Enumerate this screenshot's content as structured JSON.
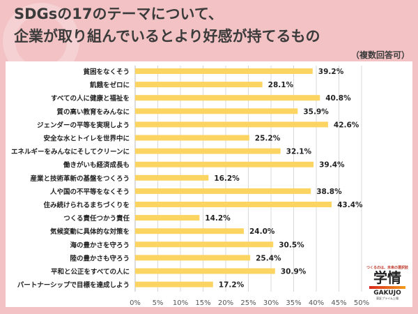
{
  "title_line1": "SDGsの17のテーマについて、",
  "title_line2": "企業が取り組んでいるとより好感が持てるもの",
  "subtitle": "（複数回答可）",
  "logo": {
    "tagline": "つくるのは、未来の選択肢",
    "name": "学情",
    "name_en": "GAKUJO",
    "listing": "東証プライム上場"
  },
  "colors": {
    "bar": "#fcd462",
    "background": "#f2c2c4",
    "grid": "#d9d9d9"
  },
  "chart_data": {
    "type": "bar",
    "orientation": "horizontal",
    "title": "SDGsの17のテーマについて、企業が取り組んでいるとより好感が持てるもの（複数回答可）",
    "categories": [
      "貧困をなくそう",
      "飢餓をゼロに",
      "すべての人に健康と福祉を",
      "質の高い教育をみんなに",
      "ジェンダーの平等を実現しよう",
      "安全な水とトイレを世界中に",
      "エネルギーをみんなにそしてクリーンに",
      "働きがいも経済成長も",
      "産業と技術革新の基盤をつくろう",
      "人や国の不平等をなくそう",
      "住み続けられるまちづくりを",
      "つくる責任つかう責任",
      "気候変動に具体的な対策を",
      "海の豊かさを守ろう",
      "陸の豊かさも守ろう",
      "平和と公正をすべての人に",
      "パートナーシップで目標を達成しよう"
    ],
    "values": [
      39.2,
      28.1,
      40.8,
      35.9,
      42.6,
      25.2,
      32.1,
      39.4,
      16.2,
      38.8,
      43.4,
      14.2,
      24.0,
      30.5,
      25.4,
      30.9,
      17.2
    ],
    "labels": [
      "39.2%",
      "28.1%",
      "40.8%",
      "35.9%",
      "42.6%",
      "25.2%",
      "32.1%",
      "39.4%",
      "16.2%",
      "38.8%",
      "43.4%",
      "14.2%",
      "24.0%",
      "30.5%",
      "25.4%",
      "30.9%",
      "17.2%"
    ],
    "xlim": [
      0,
      50
    ],
    "xticks": [
      "0%",
      "5%",
      "10%",
      "15%",
      "20%",
      "25%",
      "30%",
      "35%",
      "40%",
      "45%",
      "50%"
    ],
    "grid": true
  }
}
